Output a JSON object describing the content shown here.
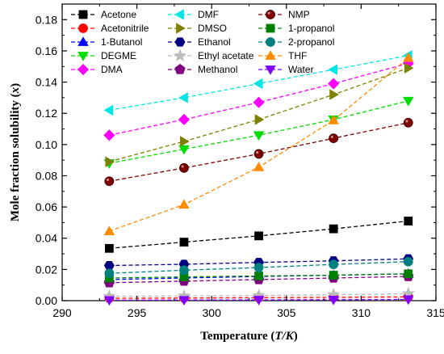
{
  "chart_data": {
    "type": "scatter",
    "xlabel": "Temperature (T/K)",
    "xlabel_parts": {
      "main": "Temperature (",
      "var": "T/K",
      "end": ")"
    },
    "ylabel": "Mole fraction solubility (x)",
    "ylabel_parts": {
      "main": "Mole fraction solubility (",
      "var": "x",
      "end": ")"
    },
    "xlim": [
      290,
      315
    ],
    "ylim": [
      0,
      0.19
    ],
    "xticks": [
      "290",
      "295",
      "300",
      "305",
      "310",
      "315"
    ],
    "yticks": [
      "0.00",
      "0.02",
      "0.04",
      "0.06",
      "0.08",
      "0.10",
      "0.12",
      "0.14",
      "0.16",
      "0.18"
    ],
    "legend_position": "top",
    "x": [
      293.15,
      298.15,
      303.15,
      308.15,
      313.15
    ],
    "series": [
      {
        "name": "Acetone",
        "color": "#000000",
        "marker": "square",
        "values": [
          0.0335,
          0.0375,
          0.0415,
          0.046,
          0.051
        ]
      },
      {
        "name": "Acetonitrile",
        "color": "#ff0000",
        "marker": "circle",
        "values": [
          0.0015,
          0.0017,
          0.0019,
          0.0021,
          0.0024
        ]
      },
      {
        "name": "1-Butanol",
        "color": "#0000ff",
        "marker": "triangle-up",
        "values": [
          0.0135,
          0.0145,
          0.0155,
          0.0163,
          0.0172
        ]
      },
      {
        "name": "DEGME",
        "color": "#00dd00",
        "marker": "triangle-down",
        "values": [
          0.088,
          0.097,
          0.106,
          0.116,
          0.128
        ]
      },
      {
        "name": "DMA",
        "color": "#ff00ff",
        "marker": "diamond",
        "values": [
          0.106,
          0.116,
          0.127,
          0.139,
          0.152
        ]
      },
      {
        "name": "DMF",
        "color": "#00e5e5",
        "marker": "triangle-left",
        "values": [
          0.122,
          0.13,
          0.139,
          0.148,
          0.157
        ]
      },
      {
        "name": "DMSO",
        "color": "#808000",
        "marker": "triangle-right",
        "values": [
          0.089,
          0.102,
          0.116,
          0.132,
          0.149
        ]
      },
      {
        "name": "Ethanol",
        "color": "#000080",
        "marker": "hexagon",
        "values": [
          0.0225,
          0.0233,
          0.0245,
          0.0255,
          0.0268
        ]
      },
      {
        "name": "Ethyl acetate",
        "color": "#bbbbbb",
        "marker": "star",
        "values": [
          0.0028,
          0.003,
          0.0033,
          0.0038,
          0.0045
        ]
      },
      {
        "name": "Methanol",
        "color": "#800080",
        "marker": "pentagon",
        "values": [
          0.0115,
          0.0125,
          0.0135,
          0.0145,
          0.0155
        ]
      },
      {
        "name": "NMP",
        "color": "#800000",
        "marker": "sphere",
        "values": [
          0.0765,
          0.085,
          0.094,
          0.104,
          0.114
        ]
      },
      {
        "name": "1-propanol",
        "color": "#008000",
        "marker": "square",
        "values": [
          0.0145,
          0.0152,
          0.0158,
          0.0163,
          0.0172
        ]
      },
      {
        "name": "2-propanol",
        "color": "#008080",
        "marker": "circle",
        "values": [
          0.0175,
          0.0195,
          0.0212,
          0.0232,
          0.025
        ]
      },
      {
        "name": "THF",
        "color": "#ff8c00",
        "marker": "triangle-up",
        "values": [
          0.0445,
          0.0615,
          0.0855,
          0.1155,
          0.1555
        ]
      },
      {
        "name": "Water",
        "color": "#8000ff",
        "marker": "triangle-down",
        "values": [
          0.0003,
          0.0004,
          0.0005,
          0.0006,
          0.0008
        ]
      }
    ]
  }
}
